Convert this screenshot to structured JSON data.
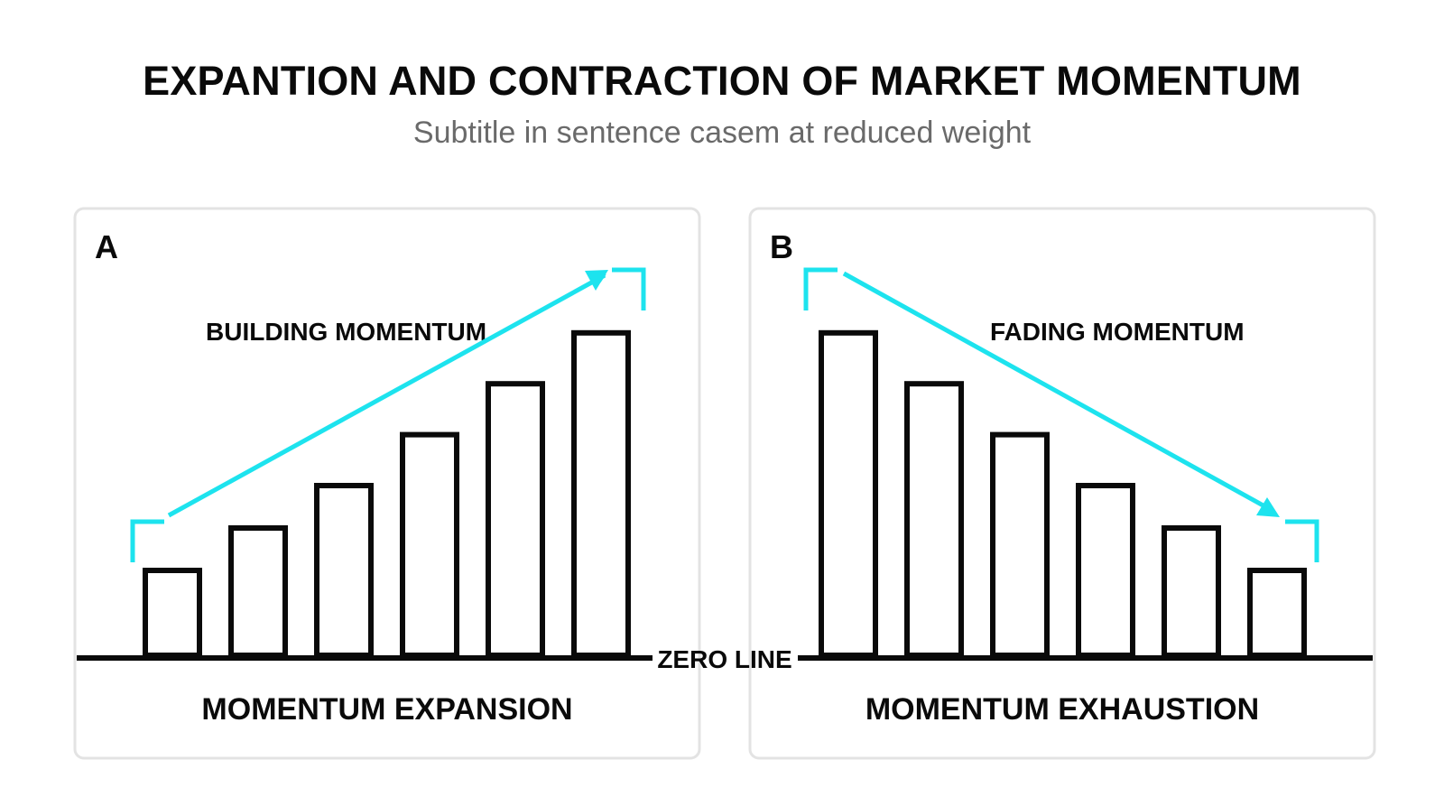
{
  "header": {
    "title": "EXPANTION AND CONTRACTION OF MARKET MOMENTUM",
    "subtitle": "Subtitle in sentence casem at reduced weight"
  },
  "panels": [
    {
      "letter": "A",
      "trend_label": "BUILDING MOMENTUM",
      "footer_label": "MOMENTUM EXPANSION",
      "bar_heights": [
        1,
        1.5,
        2,
        2.6,
        3.2,
        3.8
      ]
    },
    {
      "letter": "B",
      "trend_label": "FADING MOMENTUM",
      "footer_label": "MOMENTUM EXHAUSTION",
      "bar_heights": [
        3.8,
        3.2,
        2.6,
        2,
        1.5,
        1
      ]
    }
  ],
  "zero_line_label": "ZERO LINE",
  "colors": {
    "accent": "#1de3ee",
    "bar_stroke": "#0a0a0a",
    "panel_border": "#e3e3e3",
    "title": "#0a0a0a",
    "subtitle": "#6a6a6a"
  }
}
